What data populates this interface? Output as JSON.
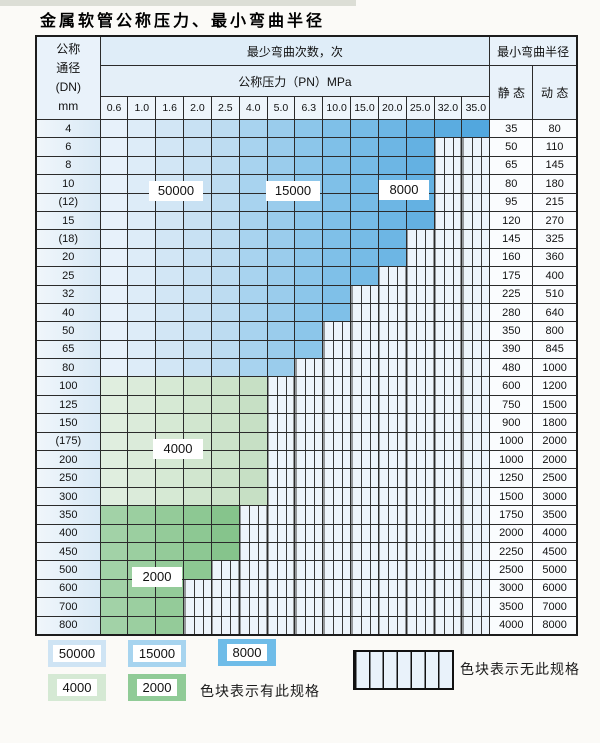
{
  "title": "金属软管公称压力、最小弯曲半径",
  "table": {
    "header": {
      "dn_lines": [
        "公称",
        "通径",
        "(DN)",
        "mm"
      ],
      "bend_cycles": "最少弯曲次数，次",
      "pressure": "公称压力（PN）MPa",
      "radius": "最小弯曲半径",
      "static_label": "静 态",
      "dynamic_label": "动 态",
      "pressure_cols": [
        "0.6",
        "1.0",
        "1.6",
        "2.0",
        "2.5",
        "4.0",
        "5.0",
        "6.3",
        "10.0",
        "15.0",
        "20.0",
        "25.0",
        "32.0",
        "35.0"
      ]
    },
    "rows": [
      {
        "dn": "4",
        "colored": 14,
        "band": "blue",
        "static": "35",
        "dynamic": "80"
      },
      {
        "dn": "6",
        "colored": 12,
        "band": "blue",
        "static": "50",
        "dynamic": "110"
      },
      {
        "dn": "8",
        "colored": 12,
        "band": "blue",
        "static": "65",
        "dynamic": "145"
      },
      {
        "dn": "10",
        "colored": 12,
        "band": "blue",
        "static": "80",
        "dynamic": "180"
      },
      {
        "dn": "(12)",
        "colored": 12,
        "band": "blue",
        "static": "95",
        "dynamic": "215"
      },
      {
        "dn": "15",
        "colored": 12,
        "band": "blue",
        "static": "120",
        "dynamic": "270"
      },
      {
        "dn": "(18)",
        "colored": 11,
        "band": "blue",
        "static": "145",
        "dynamic": "325"
      },
      {
        "dn": "20",
        "colored": 11,
        "band": "blue",
        "static": "160",
        "dynamic": "360"
      },
      {
        "dn": "25",
        "colored": 10,
        "band": "blue",
        "static": "175",
        "dynamic": "400"
      },
      {
        "dn": "32",
        "colored": 9,
        "band": "blue",
        "static": "225",
        "dynamic": "510"
      },
      {
        "dn": "40",
        "colored": 9,
        "band": "blue",
        "static": "280",
        "dynamic": "640"
      },
      {
        "dn": "50",
        "colored": 8,
        "band": "blue",
        "static": "350",
        "dynamic": "800"
      },
      {
        "dn": "65",
        "colored": 8,
        "band": "blue",
        "static": "390",
        "dynamic": "845"
      },
      {
        "dn": "80",
        "colored": 7,
        "band": "blue",
        "static": "480",
        "dynamic": "1000"
      },
      {
        "dn": "100",
        "colored": 6,
        "band": "g4",
        "static": "600",
        "dynamic": "1200"
      },
      {
        "dn": "125",
        "colored": 6,
        "band": "g4",
        "static": "750",
        "dynamic": "1500"
      },
      {
        "dn": "150",
        "colored": 6,
        "band": "g4",
        "static": "900",
        "dynamic": "1800"
      },
      {
        "dn": "(175)",
        "colored": 6,
        "band": "g4",
        "static": "1000",
        "dynamic": "2000"
      },
      {
        "dn": "200",
        "colored": 6,
        "band": "g4",
        "static": "1000",
        "dynamic": "2000"
      },
      {
        "dn": "250",
        "colored": 6,
        "band": "g4",
        "static": "1250",
        "dynamic": "2500"
      },
      {
        "dn": "300",
        "colored": 6,
        "band": "g4",
        "static": "1500",
        "dynamic": "3000"
      },
      {
        "dn": "350",
        "colored": 5,
        "band": "g2",
        "static": "1750",
        "dynamic": "3500"
      },
      {
        "dn": "400",
        "colored": 5,
        "band": "g2",
        "static": "2000",
        "dynamic": "4000"
      },
      {
        "dn": "450",
        "colored": 5,
        "band": "g2",
        "static": "2250",
        "dynamic": "4500"
      },
      {
        "dn": "500",
        "colored": 4,
        "band": "g2",
        "static": "2500",
        "dynamic": "5000"
      },
      {
        "dn": "600",
        "colored": 3,
        "band": "g2",
        "static": "3000",
        "dynamic": "6000"
      },
      {
        "dn": "700",
        "colored": 3,
        "band": "g2",
        "static": "3500",
        "dynamic": "7000"
      },
      {
        "dn": "800",
        "colored": 3,
        "band": "g2",
        "static": "4000",
        "dynamic": "8000"
      }
    ]
  },
  "overlay_labels": {
    "l50000": "50000",
    "l15000": "15000",
    "l8000": "8000",
    "l4000": "4000",
    "l2000": "2000"
  },
  "legend": {
    "swatches": [
      {
        "key": "50000",
        "label": "50000",
        "color": "#cfe4f4"
      },
      {
        "key": "15000",
        "label": "15000",
        "color": "#a7d4ef"
      },
      {
        "key": "8000",
        "label": "8000",
        "color": "#6fbce8"
      },
      {
        "key": "4000",
        "label": "4000",
        "color": "#d5e9d4"
      },
      {
        "key": "2000",
        "label": "2000",
        "color": "#90cb97"
      }
    ],
    "has_spec_text": "色块表示有此规格",
    "no_spec_text": "色块表示无此规格"
  },
  "colors": {
    "blue_band_by_col": [
      "#e7f1fa",
      "#ddecf8",
      "#d2e6f5",
      "#c8e1f3",
      "#bddcf1",
      "#a8d3ef",
      "#9accec",
      "#8cc6ea",
      "#7fc0e8",
      "#76bbe6",
      "#6db6e4",
      "#64b1e2",
      "#5bace0",
      "#52a7de"
    ],
    "green4000_by_col": [
      "#e0eedf",
      "#dbebda",
      "#d6e9d4",
      "#d1e6cf",
      "#cce3ca",
      "#c7e0c5"
    ],
    "green2000_by_col": [
      "#a2d2a7",
      "#9bcfa0",
      "#94cb99",
      "#8dc893",
      "#86c48c"
    ],
    "hatch_bg": "#edf4fb",
    "grid_line": "#2b2b2b"
  }
}
